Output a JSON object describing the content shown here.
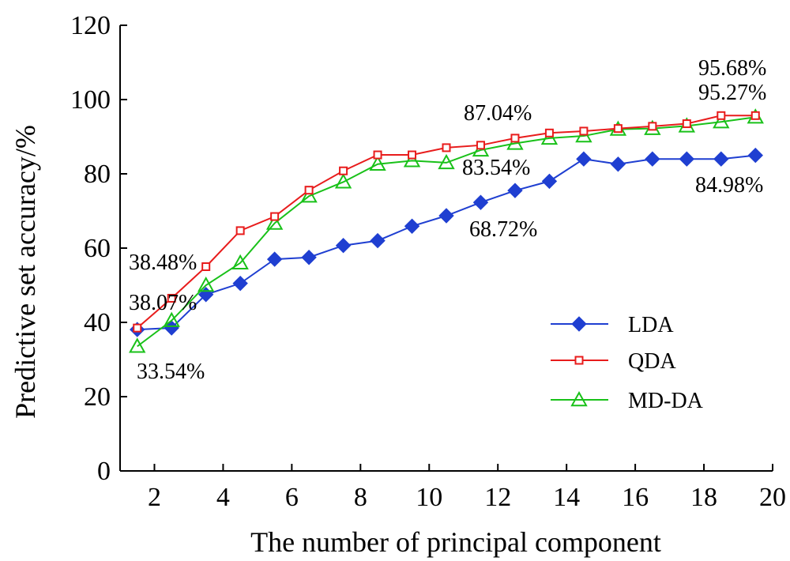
{
  "chart_data": {
    "type": "line",
    "xlabel": "The number of principal component",
    "ylabel": "Predictive set accuracy/%",
    "xlim": [
      1,
      20
    ],
    "ylim": [
      0,
      120
    ],
    "xticks": [
      2,
      4,
      6,
      8,
      10,
      12,
      14,
      16,
      18,
      20
    ],
    "yticks": [
      0,
      20,
      40,
      60,
      80,
      100,
      120
    ],
    "grid": false,
    "legend_position": "lower-right",
    "x": [
      1.5,
      2.5,
      3.5,
      4.5,
      5.5,
      6.5,
      7.5,
      8.5,
      9.5,
      10.5,
      11.5,
      12.5,
      13.5,
      14.5,
      15.5,
      16.5,
      17.5,
      18.5,
      19.5
    ],
    "series": [
      {
        "name": "LDA",
        "color": "#1f3fd1",
        "marker": "filled-diamond",
        "values": [
          38.07,
          38.5,
          47.5,
          50.5,
          57.0,
          57.5,
          60.7,
          62.0,
          65.9,
          68.72,
          72.3,
          75.5,
          78.0,
          84.0,
          82.6,
          84.0,
          84.0,
          84.0,
          84.98
        ]
      },
      {
        "name": "QDA",
        "color": "#e81c1c",
        "marker": "open-square",
        "values": [
          38.48,
          46.5,
          55.0,
          64.7,
          68.5,
          75.6,
          80.8,
          85.1,
          85.1,
          87.04,
          87.7,
          89.6,
          91.0,
          91.5,
          92.2,
          92.8,
          93.5,
          95.68,
          95.68
        ]
      },
      {
        "name": "MD-DA",
        "color": "#19c119",
        "marker": "open-triangle",
        "values": [
          33.54,
          40.5,
          50.0,
          56.0,
          66.7,
          74.0,
          77.8,
          82.6,
          83.54,
          83.0,
          86.4,
          88.2,
          89.6,
          90.2,
          92.0,
          92.2,
          92.9,
          94.0,
          95.27
        ]
      }
    ],
    "annotations": [
      "38.48%",
      "38.07%",
      "33.54%",
      "87.04%",
      "83.54%",
      "68.72%",
      "95.68%",
      "95.27%",
      "84.98%"
    ]
  }
}
